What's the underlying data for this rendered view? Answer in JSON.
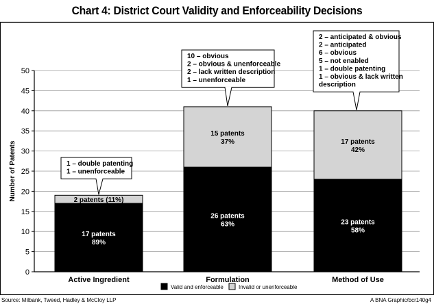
{
  "title": "Chart 4: District Court Validity and Enforceability Decisions",
  "source": "Source: Milbank, Tweed, Hadley & McCloy LLP",
  "credit": "A BNA Graphic/bcr140g4",
  "chart_data": {
    "type": "bar",
    "stacked": true,
    "title": "Chart 4: District Court Validity and Enforceability Decisions",
    "xlabel": "",
    "ylabel": "Number of Patents",
    "ylim": [
      0,
      50
    ],
    "yticks": [
      0,
      5,
      10,
      15,
      20,
      25,
      30,
      35,
      40,
      45,
      50
    ],
    "grid": true,
    "legend_position": "bottom",
    "categories": [
      "Active Ingredient",
      "Formulation",
      "Method of Use"
    ],
    "series": [
      {
        "name": "Valid and enforceable",
        "color": "#000000",
        "values": [
          17,
          26,
          23
        ],
        "labels": [
          [
            "17 patents",
            "89%"
          ],
          [
            "26 patents",
            "63%"
          ],
          [
            "23 patents",
            "58%"
          ]
        ]
      },
      {
        "name": "Invalid or unenforceable",
        "color": "#d4d4d4",
        "values": [
          2,
          15,
          17
        ],
        "labels": [
          [
            "2 patents  (11%)"
          ],
          [
            "15 patents",
            "37%"
          ],
          [
            "17 patents",
            "42%"
          ]
        ]
      }
    ],
    "annotations": [
      [
        "1 – double patenting",
        "1 – unenforceable"
      ],
      [
        "10 – obvious",
        "  2 – obvious & unenforceable",
        "  2 – lack written description",
        "  1 – unenforceable"
      ],
      [
        "2 – anticipated & obvious",
        "2 – anticipated",
        "6 – obvious",
        "5 – not enabled",
        "1 – double patenting",
        "1 – obvious & lack written",
        "      description"
      ]
    ]
  }
}
